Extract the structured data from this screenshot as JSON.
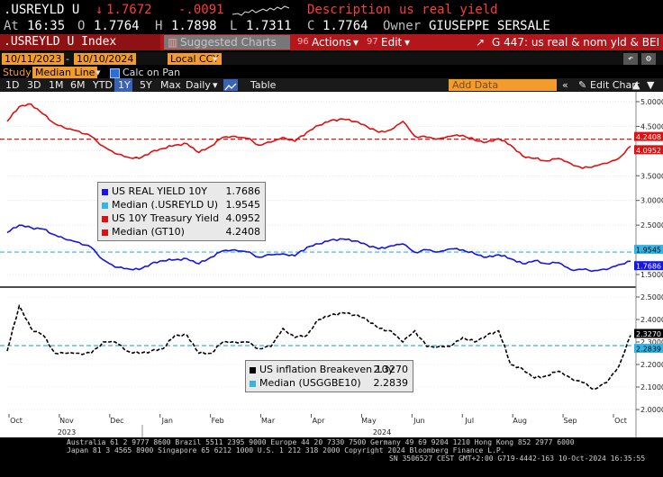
{
  "header": {
    "ticker": ".USREYLD U",
    "last_arrow": "↓",
    "last_price": "1.7672",
    "change": "-.0091",
    "desc_label": "Description",
    "desc_value": "us real yield",
    "at_label": "At",
    "at_time": "16:35",
    "o_label": "O",
    "o_value": "1.7764",
    "h_label": "H",
    "h_value": "1.7898",
    "l_label": "L",
    "l_value": "1.7311",
    "c_label": "C",
    "c_value": "1.7764",
    "owner_label": "Owner",
    "owner_value": "GIUSEPPE SERSALE"
  },
  "menubar": {
    "index_name": ".USREYLD U Index",
    "suggested_charts": "Suggested Charts",
    "actions": "Actions",
    "edit": "Edit",
    "chart_title": "G 447: us real & nom yld & BEI",
    "actions_num": "96",
    "edit_num": "97"
  },
  "controls": {
    "start_date": "10/11/2023",
    "end_date": "10/10/2024",
    "currency": "Local CCY",
    "study_label": "Study",
    "study_value": "Median Line",
    "calc_on_pan": "Calc on Pan",
    "ranges": [
      "1D",
      "3D",
      "1M",
      "6M",
      "YTD",
      "1Y",
      "5Y",
      "Max"
    ],
    "active_range": "1Y",
    "frequency": "Daily",
    "table_btn": "Table",
    "add_data": "Add Data",
    "edit_chart": "Edit Chart"
  },
  "colors": {
    "real_yield": "#1515e6",
    "median_real": "#33b5e5",
    "treasury": "#e01010",
    "median_gt10": "#e01010",
    "breakeven": "#000000",
    "median_bei": "#33b5e5"
  },
  "chart_data": [
    {
      "type": "line",
      "panel": "upper",
      "y_ticks": [
        1.5,
        2.0,
        2.5,
        3.0,
        3.5,
        4.0,
        4.5,
        5.0
      ],
      "ylim": [
        1.3,
        5.2
      ],
      "x": [
        "2023-10-11",
        "2023-10-18",
        "2023-10-25",
        "2023-11-01",
        "2023-11-08",
        "2023-11-15",
        "2023-11-22",
        "2023-11-29",
        "2023-12-06",
        "2023-12-13",
        "2023-12-20",
        "2023-12-27",
        "2024-01-03",
        "2024-01-10",
        "2024-01-17",
        "2024-01-24",
        "2024-01-31",
        "2024-02-07",
        "2024-02-14",
        "2024-02-21",
        "2024-02-28",
        "2024-03-06",
        "2024-03-13",
        "2024-03-20",
        "2024-03-27",
        "2024-04-03",
        "2024-04-10",
        "2024-04-17",
        "2024-04-24",
        "2024-05-01",
        "2024-05-08",
        "2024-05-15",
        "2024-05-22",
        "2024-05-29",
        "2024-06-05",
        "2024-06-12",
        "2024-06-19",
        "2024-06-26",
        "2024-07-03",
        "2024-07-10",
        "2024-07-17",
        "2024-07-24",
        "2024-07-31",
        "2024-08-07",
        "2024-08-14",
        "2024-08-21",
        "2024-08-28",
        "2024-09-04",
        "2024-09-11",
        "2024-09-18",
        "2024-09-25",
        "2024-10-02",
        "2024-10-10"
      ],
      "series": [
        {
          "name": "US REAL YIELD 10Y",
          "values": [
            2.35,
            2.5,
            2.45,
            2.42,
            2.3,
            2.2,
            2.15,
            2.05,
            1.8,
            1.65,
            1.62,
            1.6,
            1.72,
            1.78,
            1.8,
            1.82,
            1.72,
            1.85,
            1.98,
            2.0,
            1.96,
            1.85,
            1.9,
            1.92,
            1.88,
            2.05,
            2.12,
            2.2,
            2.22,
            2.18,
            2.1,
            2.02,
            2.08,
            2.12,
            1.95,
            2.0,
            1.96,
            2.02,
            2.0,
            1.92,
            1.85,
            1.9,
            1.82,
            1.72,
            1.78,
            1.72,
            1.74,
            1.6,
            1.6,
            1.58,
            1.6,
            1.7,
            1.77
          ],
          "latest_label": "1.7686"
        },
        {
          "name": "US 10Y Treasury Yield",
          "values": [
            4.6,
            4.9,
            4.95,
            4.75,
            4.55,
            4.45,
            4.4,
            4.3,
            4.1,
            3.95,
            3.88,
            3.85,
            3.98,
            4.05,
            4.12,
            4.15,
            3.97,
            4.1,
            4.28,
            4.3,
            4.26,
            4.12,
            4.18,
            4.28,
            4.2,
            4.38,
            4.52,
            4.62,
            4.65,
            4.6,
            4.5,
            4.38,
            4.43,
            4.6,
            4.3,
            4.28,
            4.25,
            4.3,
            4.32,
            4.22,
            4.18,
            4.25,
            4.12,
            3.9,
            3.85,
            3.8,
            3.85,
            3.75,
            3.65,
            3.7,
            3.75,
            3.85,
            4.1
          ],
          "latest_label": "4.0952"
        },
        {
          "name": "Median (.USREYLD U)",
          "median": 1.9545,
          "latest_label": "1.9545"
        },
        {
          "name": "Median (GT10)",
          "median": 4.2408,
          "latest_label": "4.2408"
        }
      ]
    },
    {
      "type": "line",
      "panel": "lower",
      "y_ticks": [
        2.0,
        2.1,
        2.2,
        2.3,
        2.4,
        2.5
      ],
      "ylim": [
        1.98,
        2.54
      ],
      "x_tick_labels": [
        "Oct",
        "Nov",
        "Dec",
        "Jan",
        "Feb",
        "Mar",
        "Apr",
        "May",
        "Jun",
        "Jul",
        "Aug",
        "Sep",
        "Oct"
      ],
      "x_year_labels": [
        "2023",
        "2024"
      ],
      "series": [
        {
          "name": "US inflation Breakeven 10y",
          "values": [
            2.26,
            2.46,
            2.36,
            2.33,
            2.25,
            2.25,
            2.25,
            2.25,
            2.3,
            2.3,
            2.26,
            2.25,
            2.26,
            2.27,
            2.33,
            2.33,
            2.25,
            2.25,
            2.3,
            2.3,
            2.3,
            2.27,
            2.28,
            2.36,
            2.32,
            2.33,
            2.4,
            2.42,
            2.43,
            2.42,
            2.4,
            2.36,
            2.35,
            2.3,
            2.35,
            2.28,
            2.28,
            2.28,
            2.32,
            2.3,
            2.33,
            2.35,
            2.2,
            2.18,
            2.14,
            2.15,
            2.17,
            2.14,
            2.12,
            2.09,
            2.12,
            2.19,
            2.33
          ],
          "latest_label": "2.3270",
          "legend_value": "2.3270"
        },
        {
          "name": "Median (USGGBE10)",
          "median": 2.2839,
          "latest_label": "2.2839",
          "legend_value": "2.2839"
        }
      ]
    }
  ],
  "legend_upper": [
    {
      "label": "US REAL YIELD 10Y",
      "value": "1.7686"
    },
    {
      "label": "Median (.USREYLD U)",
      "value": "1.9545"
    },
    {
      "label": "US 10Y Treasury Yield",
      "value": "4.0952"
    },
    {
      "label": "Median (GT10)",
      "value": "4.2408"
    }
  ],
  "footer": {
    "line1": "Australia 61 2 9777 8600 Brazil 5511 2395 9000 Europe 44 20 7330 7500 Germany 49 69 9204 1210 Hong Kong 852 2977 6000",
    "line2": "Japan 81 3 4565 8900        Singapore 65 6212 1000        U.S. 1 212 318 2000        Copyright 2024 Bloomberg Finance L.P.",
    "line3": "SN 3506527 CEST GMT+2:00 G719-4442-163 10-Oct-2024 16:35:55"
  }
}
